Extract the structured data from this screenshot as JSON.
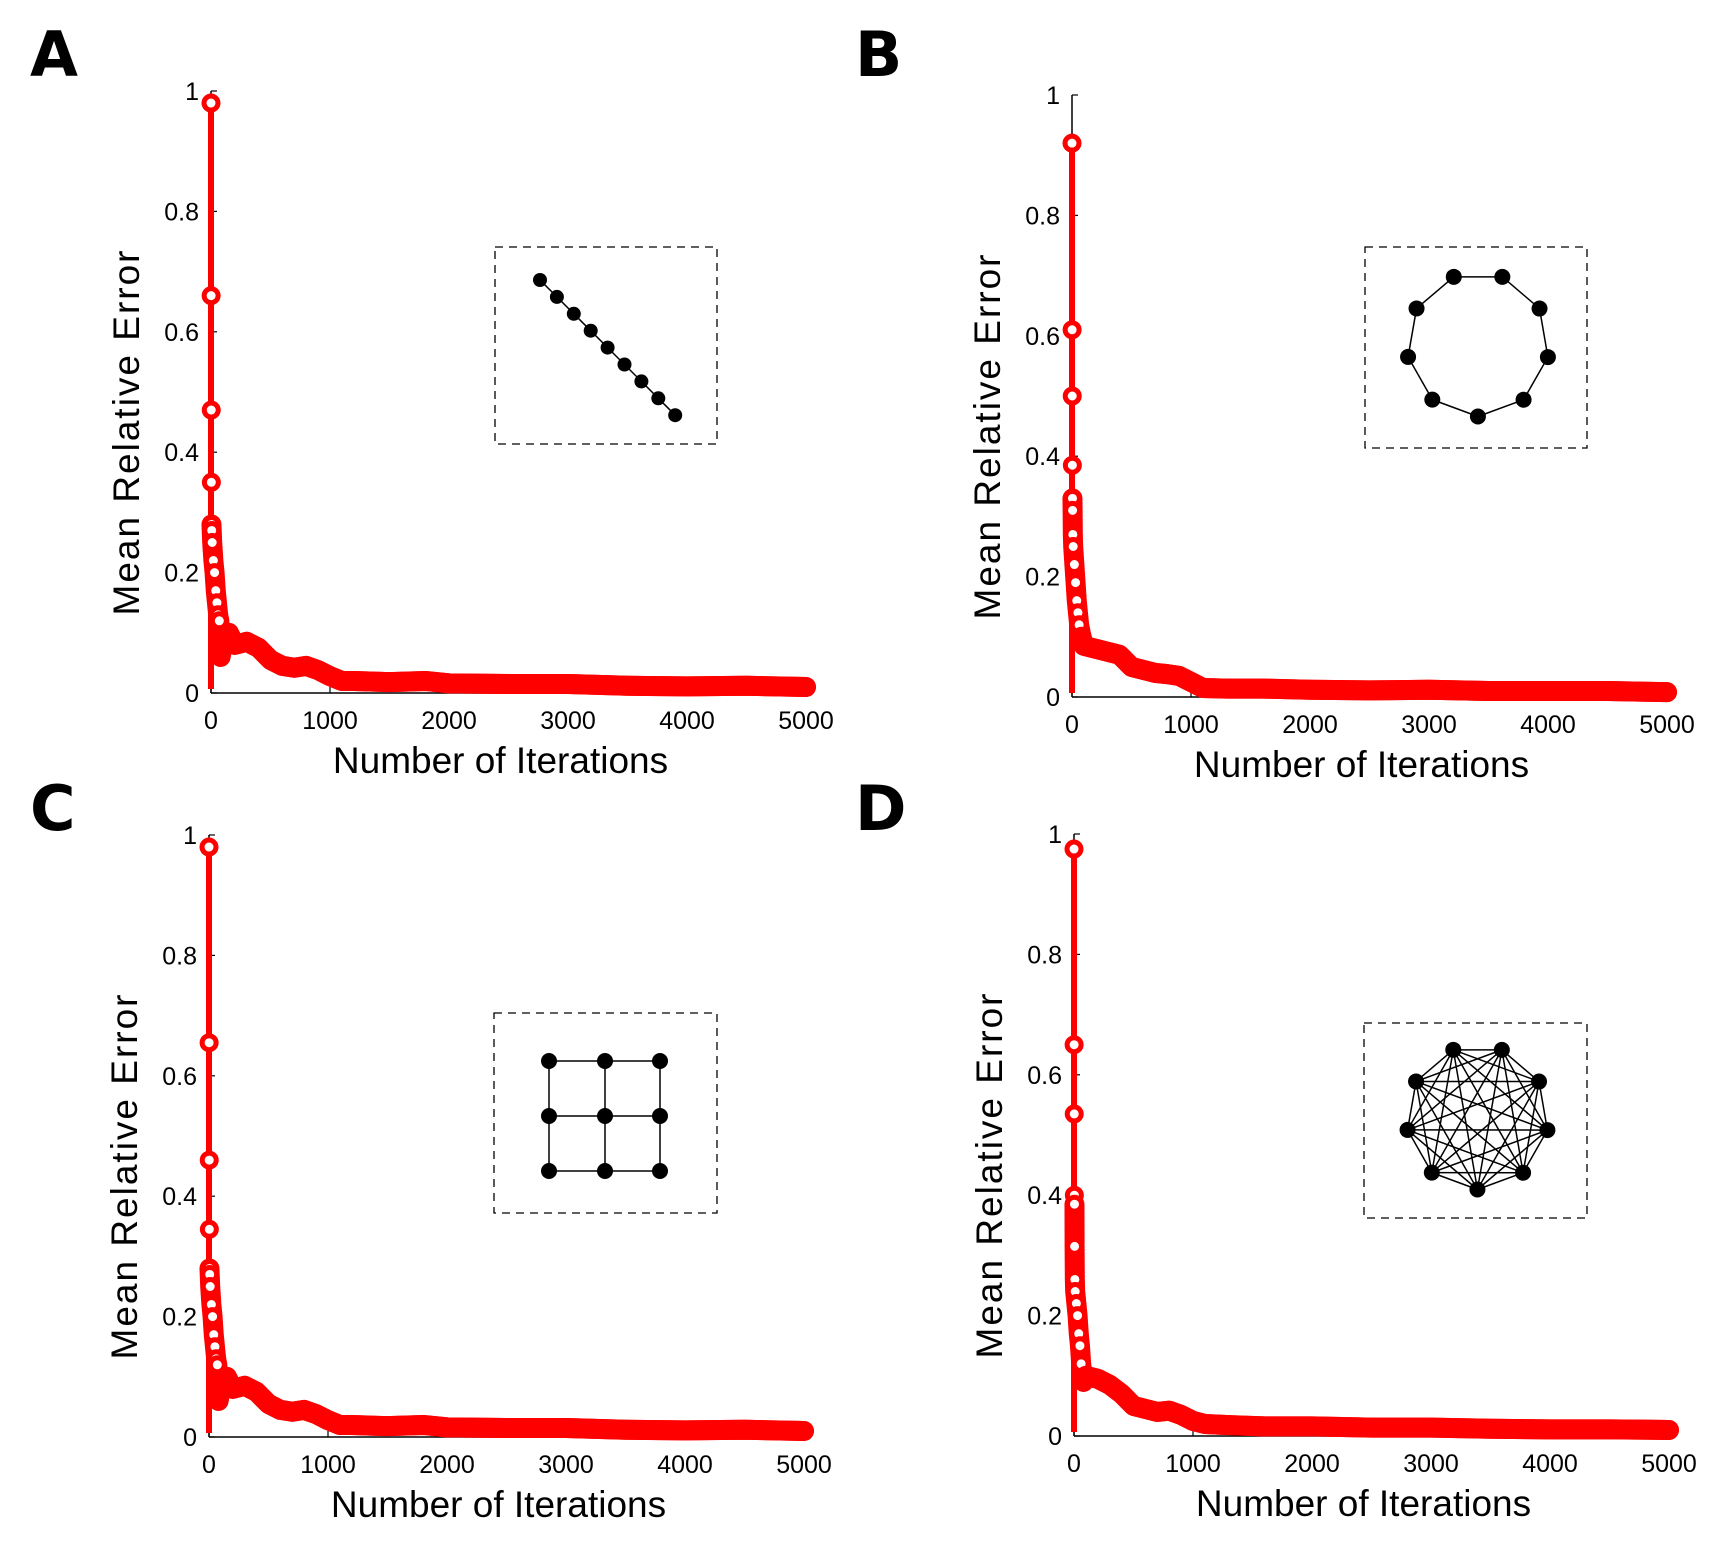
{
  "colors": {
    "series": "#ff0000",
    "axis": "#000000",
    "inset": "#000000"
  },
  "chart_data": [
    {
      "type": "line",
      "panel_label": "A",
      "xlabel": "Number of Iterations",
      "ylabel": "Mean Relative Error",
      "xlim": [
        0,
        5000
      ],
      "ylim": [
        0,
        1
      ],
      "xticks": [
        "0",
        "1000",
        "2000",
        "3000",
        "4000",
        "5000"
      ],
      "yticks": [
        "0",
        "0.2",
        "0.4",
        "0.6",
        "0.8",
        "1"
      ],
      "grid": false,
      "marker": "circle",
      "inset_topology": "line",
      "points": [
        [
          0,
          0.98
        ],
        [
          1,
          0.66
        ],
        [
          2,
          0.47
        ],
        [
          3,
          0.35
        ],
        [
          4,
          0.28
        ],
        [
          6,
          0.27
        ],
        [
          10,
          0.25
        ],
        [
          20,
          0.22
        ],
        [
          30,
          0.2
        ],
        [
          40,
          0.17
        ],
        [
          50,
          0.15
        ],
        [
          60,
          0.13
        ],
        [
          70,
          0.12
        ],
        [
          80,
          0.06
        ],
        [
          100,
          0.08
        ],
        [
          150,
          0.1
        ],
        [
          200,
          0.08
        ],
        [
          300,
          0.085
        ],
        [
          400,
          0.075
        ],
        [
          500,
          0.055
        ],
        [
          600,
          0.045
        ],
        [
          700,
          0.042
        ],
        [
          800,
          0.045
        ],
        [
          900,
          0.038
        ],
        [
          1000,
          0.028
        ],
        [
          1100,
          0.02
        ],
        [
          1200,
          0.02
        ],
        [
          1500,
          0.018
        ],
        [
          1800,
          0.02
        ],
        [
          2000,
          0.016
        ],
        [
          2500,
          0.015
        ],
        [
          3000,
          0.015
        ],
        [
          3500,
          0.012
        ],
        [
          4000,
          0.011
        ],
        [
          4500,
          0.012
        ],
        [
          5000,
          0.01
        ]
      ]
    },
    {
      "type": "line",
      "panel_label": "B",
      "xlabel": "Number of Iterations",
      "ylabel": "Mean Relative Error",
      "xlim": [
        0,
        5000
      ],
      "ylim": [
        0,
        1
      ],
      "xticks": [
        "0",
        "1000",
        "2000",
        "3000",
        "4000",
        "5000"
      ],
      "yticks": [
        "0",
        "0.2",
        "0.4",
        "0.6",
        "0.8",
        "1"
      ],
      "grid": false,
      "marker": "circle",
      "inset_topology": "ring",
      "points": [
        [
          0,
          0.92
        ],
        [
          1,
          0.61
        ],
        [
          2,
          0.5
        ],
        [
          3,
          0.385
        ],
        [
          4,
          0.33
        ],
        [
          5,
          0.31
        ],
        [
          7,
          0.27
        ],
        [
          10,
          0.25
        ],
        [
          20,
          0.22
        ],
        [
          30,
          0.19
        ],
        [
          40,
          0.16
        ],
        [
          50,
          0.14
        ],
        [
          60,
          0.12
        ],
        [
          80,
          0.1
        ],
        [
          100,
          0.085
        ],
        [
          200,
          0.08
        ],
        [
          300,
          0.075
        ],
        [
          400,
          0.07
        ],
        [
          500,
          0.05
        ],
        [
          600,
          0.045
        ],
        [
          700,
          0.04
        ],
        [
          800,
          0.038
        ],
        [
          900,
          0.035
        ],
        [
          1000,
          0.025
        ],
        [
          1100,
          0.015
        ],
        [
          1300,
          0.014
        ],
        [
          1600,
          0.014
        ],
        [
          2000,
          0.012
        ],
        [
          2500,
          0.011
        ],
        [
          3000,
          0.012
        ],
        [
          3500,
          0.01
        ],
        [
          4000,
          0.01
        ],
        [
          4500,
          0.01
        ],
        [
          5000,
          0.008
        ]
      ]
    },
    {
      "type": "line",
      "panel_label": "C",
      "xlabel": "Number of Iterations",
      "ylabel": "Mean Relative Error",
      "xlim": [
        0,
        5000
      ],
      "ylim": [
        0,
        1
      ],
      "xticks": [
        "0",
        "1000",
        "2000",
        "3000",
        "4000",
        "5000"
      ],
      "yticks": [
        "0",
        "0.2",
        "0.4",
        "0.6",
        "0.8",
        "1"
      ],
      "grid": false,
      "marker": "circle",
      "inset_topology": "grid",
      "points": [
        [
          0,
          0.98
        ],
        [
          1,
          0.655
        ],
        [
          2,
          0.46
        ],
        [
          3,
          0.345
        ],
        [
          4,
          0.28
        ],
        [
          6,
          0.27
        ],
        [
          10,
          0.25
        ],
        [
          20,
          0.22
        ],
        [
          30,
          0.2
        ],
        [
          40,
          0.17
        ],
        [
          50,
          0.15
        ],
        [
          60,
          0.13
        ],
        [
          70,
          0.12
        ],
        [
          80,
          0.06
        ],
        [
          100,
          0.08
        ],
        [
          150,
          0.1
        ],
        [
          200,
          0.08
        ],
        [
          300,
          0.085
        ],
        [
          400,
          0.075
        ],
        [
          500,
          0.055
        ],
        [
          600,
          0.045
        ],
        [
          700,
          0.042
        ],
        [
          800,
          0.045
        ],
        [
          900,
          0.038
        ],
        [
          1000,
          0.028
        ],
        [
          1100,
          0.02
        ],
        [
          1200,
          0.02
        ],
        [
          1500,
          0.018
        ],
        [
          1800,
          0.02
        ],
        [
          2000,
          0.016
        ],
        [
          2500,
          0.015
        ],
        [
          3000,
          0.015
        ],
        [
          3500,
          0.012
        ],
        [
          4000,
          0.011
        ],
        [
          4500,
          0.012
        ],
        [
          5000,
          0.01
        ]
      ]
    },
    {
      "type": "line",
      "panel_label": "D",
      "xlabel": "Number of Iterations",
      "ylabel": "Mean Relative Error",
      "xlim": [
        0,
        5000
      ],
      "ylim": [
        0,
        1
      ],
      "xticks": [
        "0",
        "1000",
        "2000",
        "3000",
        "4000",
        "5000"
      ],
      "yticks": [
        "0",
        "0.2",
        "0.4",
        "0.6",
        "0.8",
        "1"
      ],
      "grid": false,
      "marker": "circle",
      "inset_topology": "complete",
      "points": [
        [
          0,
          0.975
        ],
        [
          1,
          0.65
        ],
        [
          2,
          0.535
        ],
        [
          3,
          0.4
        ],
        [
          4,
          0.385
        ],
        [
          5,
          0.315
        ],
        [
          7,
          0.26
        ],
        [
          10,
          0.24
        ],
        [
          20,
          0.22
        ],
        [
          30,
          0.2
        ],
        [
          40,
          0.17
        ],
        [
          50,
          0.15
        ],
        [
          60,
          0.12
        ],
        [
          80,
          0.09
        ],
        [
          100,
          0.1
        ],
        [
          200,
          0.095
        ],
        [
          300,
          0.085
        ],
        [
          400,
          0.07
        ],
        [
          500,
          0.05
        ],
        [
          600,
          0.045
        ],
        [
          700,
          0.04
        ],
        [
          800,
          0.042
        ],
        [
          900,
          0.035
        ],
        [
          1000,
          0.025
        ],
        [
          1100,
          0.02
        ],
        [
          1300,
          0.018
        ],
        [
          1600,
          0.016
        ],
        [
          2000,
          0.016
        ],
        [
          2500,
          0.014
        ],
        [
          3000,
          0.014
        ],
        [
          3500,
          0.012
        ],
        [
          4000,
          0.011
        ],
        [
          4500,
          0.011
        ],
        [
          5000,
          0.01
        ]
      ]
    }
  ]
}
